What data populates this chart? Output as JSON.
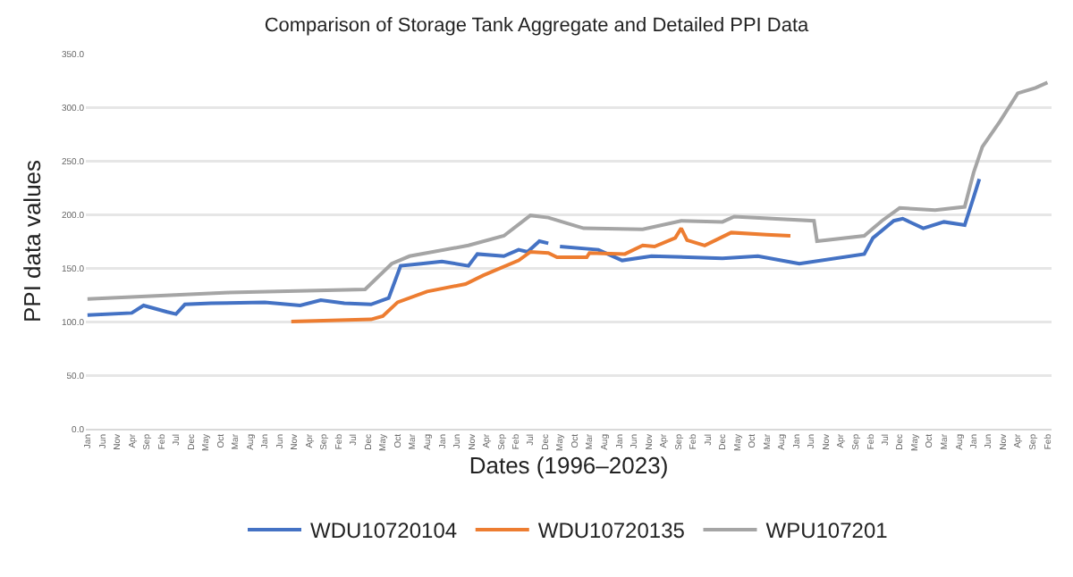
{
  "chart_data": {
    "type": "line",
    "title": "Comparison of Storage Tank Aggregate and Detailed PPI Data",
    "xlabel": "Dates (1996–2023)",
    "ylabel": "PPI data values",
    "xlim": [
      "1995-12-15",
      "2023-03-15"
    ],
    "ylim": [
      0,
      350
    ],
    "yticks": [
      {
        "value": 0,
        "label": "0.0"
      },
      {
        "value": 50,
        "label": "50.0"
      },
      {
        "value": 100,
        "label": "100.0"
      },
      {
        "value": 150,
        "label": "150.0"
      },
      {
        "value": 200,
        "label": "200.0"
      },
      {
        "value": 250,
        "label": "250.0"
      },
      {
        "value": 300,
        "label": "300.0"
      },
      {
        "value": 350,
        "label": "350.0"
      }
    ],
    "xticks": [
      {
        "value": "1996-01",
        "label": "Jan"
      },
      {
        "value": "1996-06",
        "label": "Jun"
      },
      {
        "value": "1996-11",
        "label": "Nov"
      },
      {
        "value": "1997-04",
        "label": "Apr"
      },
      {
        "value": "1997-09",
        "label": "Sep"
      },
      {
        "value": "1998-02",
        "label": "Feb"
      },
      {
        "value": "1998-07",
        "label": "Jul"
      },
      {
        "value": "1998-12",
        "label": "Dec"
      },
      {
        "value": "1999-05",
        "label": "May"
      },
      {
        "value": "1999-10",
        "label": "Oct"
      },
      {
        "value": "2000-03",
        "label": "Mar"
      },
      {
        "value": "2000-08",
        "label": "Aug"
      },
      {
        "value": "2001-01",
        "label": "Jan"
      },
      {
        "value": "2001-06",
        "label": "Jun"
      },
      {
        "value": "2001-11",
        "label": "Nov"
      },
      {
        "value": "2002-04",
        "label": "Apr"
      },
      {
        "value": "2002-09",
        "label": "Sep"
      },
      {
        "value": "2003-02",
        "label": "Feb"
      },
      {
        "value": "2003-07",
        "label": "Jul"
      },
      {
        "value": "2003-12",
        "label": "Dec"
      },
      {
        "value": "2004-05",
        "label": "May"
      },
      {
        "value": "2004-10",
        "label": "Oct"
      },
      {
        "value": "2005-03",
        "label": "Mar"
      },
      {
        "value": "2005-08",
        "label": "Aug"
      },
      {
        "value": "2006-01",
        "label": "Jan"
      },
      {
        "value": "2006-06",
        "label": "Jun"
      },
      {
        "value": "2006-11",
        "label": "Nov"
      },
      {
        "value": "2007-04",
        "label": "Apr"
      },
      {
        "value": "2007-09",
        "label": "Sep"
      },
      {
        "value": "2008-02",
        "label": "Feb"
      },
      {
        "value": "2008-07",
        "label": "Jul"
      },
      {
        "value": "2008-12",
        "label": "Dec"
      },
      {
        "value": "2009-05",
        "label": "May"
      },
      {
        "value": "2009-10",
        "label": "Oct"
      },
      {
        "value": "2010-03",
        "label": "Mar"
      },
      {
        "value": "2010-08",
        "label": "Aug"
      },
      {
        "value": "2011-01",
        "label": "Jan"
      },
      {
        "value": "2011-06",
        "label": "Jun"
      },
      {
        "value": "2011-11",
        "label": "Nov"
      },
      {
        "value": "2012-04",
        "label": "Apr"
      },
      {
        "value": "2012-09",
        "label": "Sep"
      },
      {
        "value": "2013-02",
        "label": "Feb"
      },
      {
        "value": "2013-07",
        "label": "Jul"
      },
      {
        "value": "2013-12",
        "label": "Dec"
      },
      {
        "value": "2014-05",
        "label": "May"
      },
      {
        "value": "2014-10",
        "label": "Oct"
      },
      {
        "value": "2015-03",
        "label": "Mar"
      },
      {
        "value": "2015-08",
        "label": "Aug"
      },
      {
        "value": "2016-01",
        "label": "Jan"
      },
      {
        "value": "2016-06",
        "label": "Jun"
      },
      {
        "value": "2016-11",
        "label": "Nov"
      },
      {
        "value": "2017-04",
        "label": "Apr"
      },
      {
        "value": "2017-09",
        "label": "Sep"
      },
      {
        "value": "2018-02",
        "label": "Feb"
      },
      {
        "value": "2018-07",
        "label": "Jul"
      },
      {
        "value": "2018-12",
        "label": "Dec"
      },
      {
        "value": "2019-05",
        "label": "May"
      },
      {
        "value": "2019-10",
        "label": "Oct"
      },
      {
        "value": "2020-03",
        "label": "Mar"
      },
      {
        "value": "2020-08",
        "label": "Aug"
      },
      {
        "value": "2021-01",
        "label": "Jan"
      },
      {
        "value": "2021-06",
        "label": "Jun"
      },
      {
        "value": "2021-11",
        "label": "Nov"
      },
      {
        "value": "2022-04",
        "label": "Apr"
      },
      {
        "value": "2022-09",
        "label": "Sep"
      },
      {
        "value": "2023-02",
        "label": "Feb"
      }
    ],
    "grid": "y",
    "legend": "bottom",
    "marker": "none",
    "line_style": "solid",
    "series": [
      {
        "name": "WDU10720104",
        "color": "#4472c4",
        "x": [
          "1996-01",
          "1997-04",
          "1997-08",
          "1998-04",
          "1998-07",
          "1998-10",
          "1999-07",
          "2001-01",
          "2002-01",
          "2002-08",
          "2003-04",
          "2004-01",
          "2004-07",
          "2004-11",
          "2005-06",
          "2006-01",
          "2006-10",
          "2007-01",
          "2007-10",
          "2008-03",
          "2008-06",
          "2008-10",
          "2009-01",
          "2009-03",
          "2009-05",
          "2010-06",
          "2011-02",
          "2011-12",
          "2013-12",
          "2014-12",
          "2015-12",
          "2016-02",
          "2017-12",
          "2018-03",
          "2018-10",
          "2019-01",
          "2019-08",
          "2020-03",
          "2020-10",
          "2021-01",
          "2021-03"
        ],
        "values": [
          106,
          108,
          115,
          109,
          107,
          116,
          117,
          118,
          115,
          120,
          117,
          116,
          122,
          152,
          154,
          156,
          152,
          163,
          161,
          167,
          165,
          175,
          173,
          null,
          170,
          167,
          157,
          161,
          159,
          161,
          155,
          154,
          163,
          178,
          194,
          196,
          187,
          193,
          190,
          216,
          233
        ]
      },
      {
        "name": "WDU10720135",
        "color": "#ed7d31",
        "x": [
          "2001-10",
          "2004-01",
          "2004-05",
          "2004-10",
          "2005-08",
          "2006-09",
          "2007-03",
          "2008-03",
          "2008-07",
          "2009-01",
          "2009-04",
          "2010-02",
          "2010-03",
          "2011-03",
          "2011-09",
          "2012-01",
          "2012-08",
          "2012-10",
          "2012-12",
          "2013-06",
          "2014-03",
          "2015-03",
          "2015-11"
        ],
        "values": [
          100,
          102,
          105,
          118,
          128,
          135,
          143,
          157,
          165,
          164,
          160,
          160,
          164,
          163,
          171,
          170,
          178,
          187,
          176,
          171,
          183,
          181,
          180
        ]
      },
      {
        "name": "WPU107201",
        "color": "#a5a5a5",
        "x": [
          "1996-01",
          "2000-01",
          "2003-11",
          "2004-08",
          "2005-02",
          "2006-10",
          "2007-10",
          "2008-07",
          "2009-01",
          "2010-01",
          "2011-09",
          "2012-10",
          "2013-12",
          "2014-04",
          "2016-07",
          "2016-08",
          "2017-12",
          "2018-06",
          "2018-12",
          "2019-12",
          "2020-10",
          "2021-01",
          "2021-04",
          "2021-10",
          "2022-04",
          "2022-10",
          "2023-02"
        ],
        "values": [
          121,
          127,
          130,
          154,
          161,
          171,
          180,
          199,
          197,
          187,
          186,
          194,
          193,
          198,
          194,
          175,
          180,
          194,
          206,
          204,
          207,
          239,
          263,
          287,
          313,
          318,
          323
        ]
      }
    ]
  }
}
